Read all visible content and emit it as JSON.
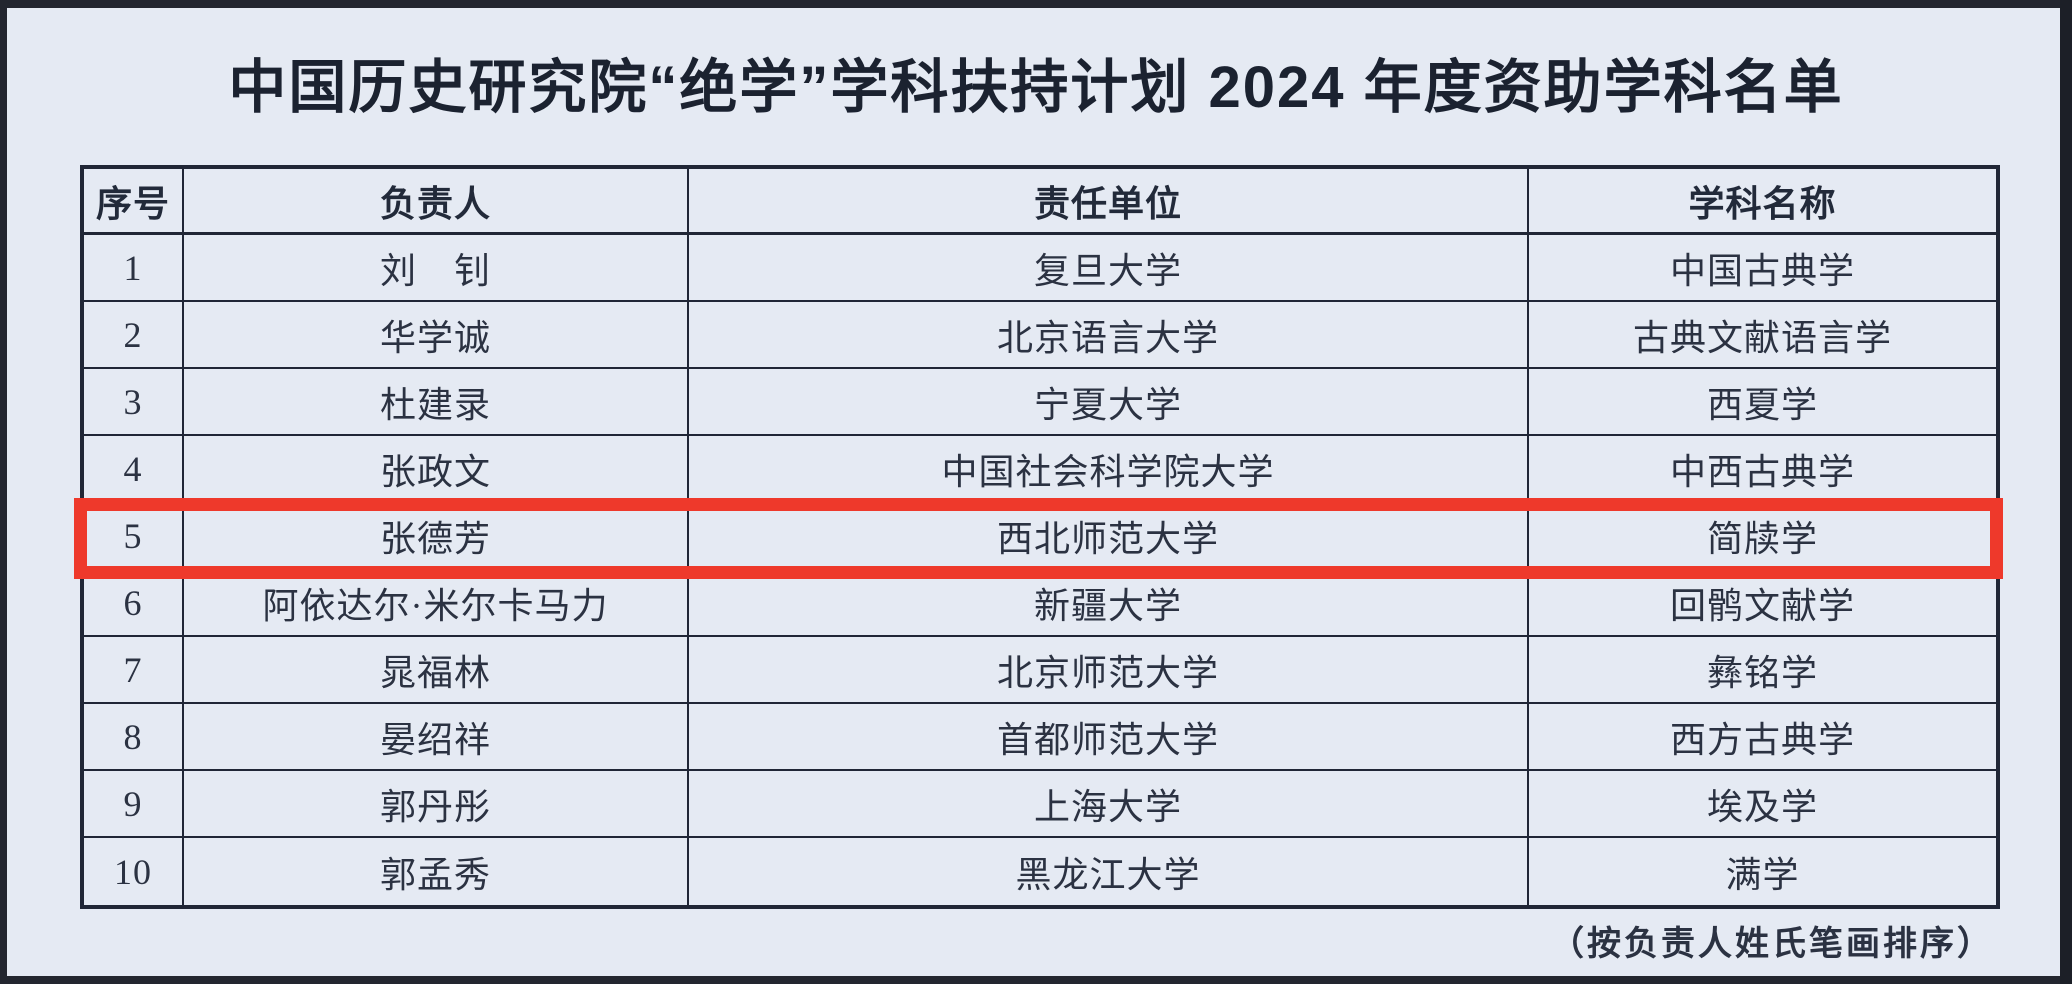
{
  "page": {
    "title": "中国历史研究院“绝学”学科扶持计划 2024 年度资助学科名单",
    "footer_note": "（按负责人姓氏笔画排序）"
  },
  "table": {
    "headers": [
      "序号",
      "负责人",
      "责任单位",
      "学科名称"
    ],
    "rows": [
      {
        "no": "1",
        "person": "刘　钊",
        "unit": "复旦大学",
        "discipline": "中国古典学",
        "highlighted": false
      },
      {
        "no": "2",
        "person": "华学诚",
        "unit": "北京语言大学",
        "discipline": "古典文献语言学",
        "highlighted": false
      },
      {
        "no": "3",
        "person": "杜建录",
        "unit": "宁夏大学",
        "discipline": "西夏学",
        "highlighted": false
      },
      {
        "no": "4",
        "person": "张政文",
        "unit": "中国社会科学院大学",
        "discipline": "中西古典学",
        "highlighted": false
      },
      {
        "no": "5",
        "person": "张德芳",
        "unit": "西北师范大学",
        "discipline": "简牍学",
        "highlighted": true
      },
      {
        "no": "6",
        "person": "阿依达尔·米尔卡马力",
        "unit": "新疆大学",
        "discipline": "回鹘文献学",
        "highlighted": false
      },
      {
        "no": "7",
        "person": "晁福林",
        "unit": "北京师范大学",
        "discipline": "彝铭学",
        "highlighted": false
      },
      {
        "no": "8",
        "person": "晏绍祥",
        "unit": "首都师范大学",
        "discipline": "西方古典学",
        "highlighted": false
      },
      {
        "no": "9",
        "person": "郭丹彤",
        "unit": "上海大学",
        "discipline": "埃及学",
        "highlighted": false
      },
      {
        "no": "10",
        "person": "郭孟秀",
        "unit": "黑龙江大学",
        "discipline": "满学",
        "highlighted": false
      }
    ]
  },
  "colors": {
    "page_background": "#e5eaf3",
    "frame": "#23262f",
    "table_border": "#202636",
    "title_text": "#1b2230",
    "body_text": "#2b3242",
    "highlight_box": "#ee392b"
  }
}
